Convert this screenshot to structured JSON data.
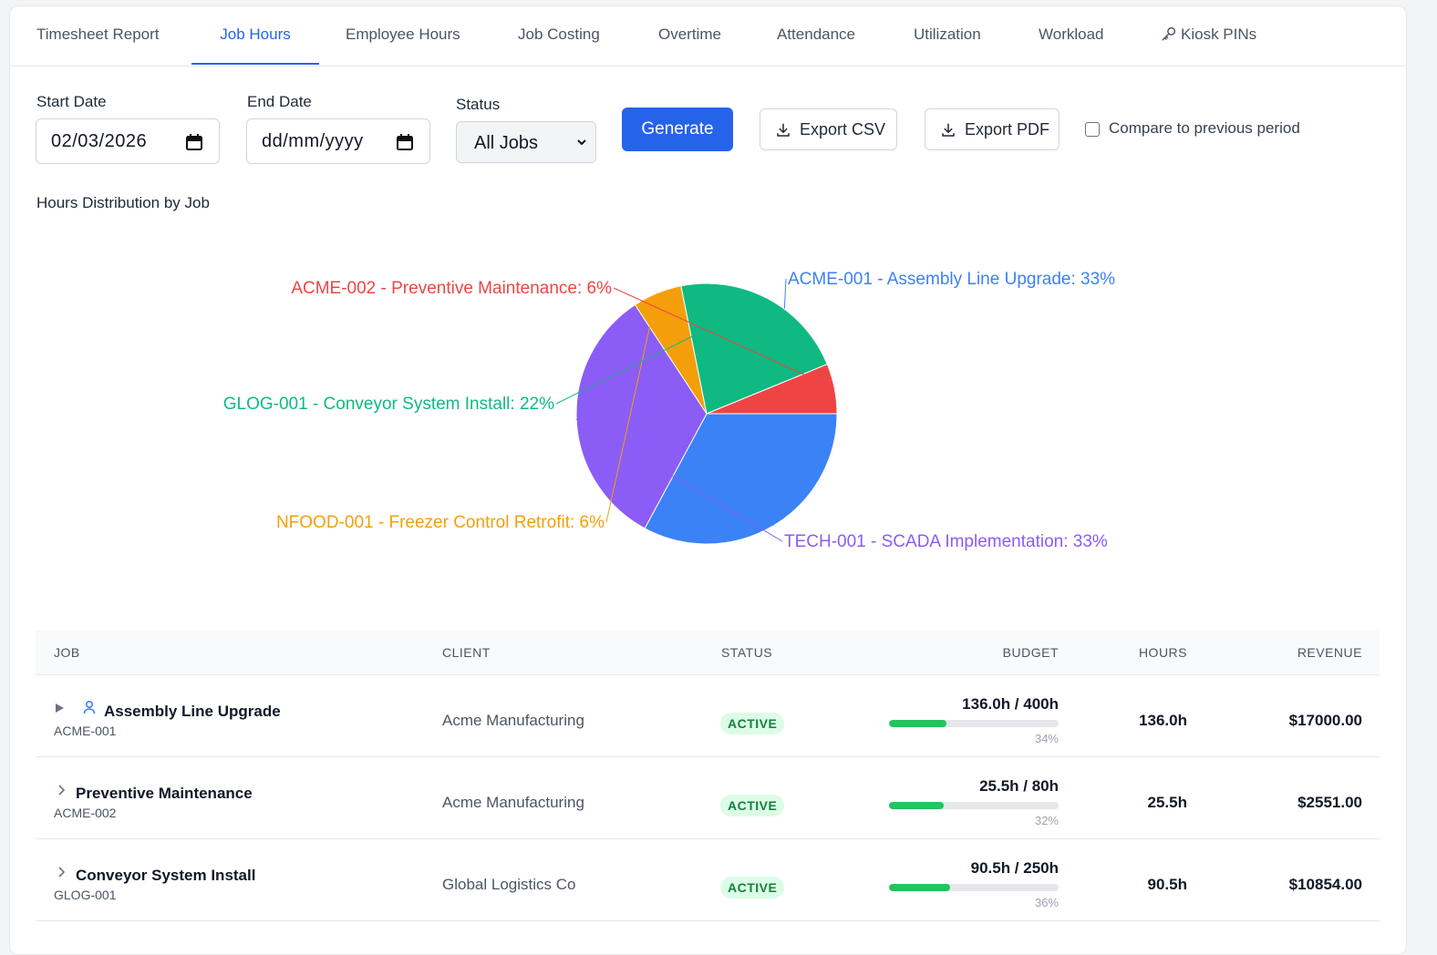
{
  "tabs": [
    {
      "label": "Timesheet Report"
    },
    {
      "label": "Job Hours"
    },
    {
      "label": "Employee Hours"
    },
    {
      "label": "Job Costing"
    },
    {
      "label": "Overtime"
    },
    {
      "label": "Attendance"
    },
    {
      "label": "Utilization"
    },
    {
      "label": "Workload"
    },
    {
      "label": "Kiosk PINs"
    }
  ],
  "active_tab": "Job Hours",
  "filters": {
    "start_label": "Start Date",
    "start_value": "02/03/2026",
    "end_label": "End Date",
    "end_value": "dd/mm/yyyy",
    "status_label": "Status",
    "status_value": "All Jobs",
    "generate": "Generate",
    "export_csv": "Export CSV",
    "export_pdf": "Export PDF",
    "compare": "Compare to previous period",
    "compare_checked": false
  },
  "chart_heading": "Hours Distribution by Job",
  "chart_data": {
    "type": "pie",
    "slices": [
      {
        "label": "ACME-001 - Assembly Line Upgrade: 33%",
        "value": 33.4,
        "color": "#3b82f6"
      },
      {
        "label": "TECH-001 - SCADA Implementation: 33%",
        "value": 33.4,
        "color": "#8b5cf6"
      },
      {
        "label": "NFOOD-001 - Freezer Control Retrofit: 6%",
        "value": 6.2,
        "color": "#f59e0b"
      },
      {
        "label": "GLOG-001 - Conveyor System Install: 22%",
        "value": 22.3,
        "color": "#10b981"
      },
      {
        "label": "ACME-002 - Preventive Maintenance: 6%",
        "value": 6.3,
        "color": "#ef4444"
      }
    ]
  },
  "table": {
    "headers": {
      "job": "JOB",
      "client": "CLIENT",
      "status": "STATUS",
      "budget": "BUDGET",
      "hours": "HOURS",
      "revenue": "REVENUE"
    },
    "rows": [
      {
        "name": "Assembly Line Upgrade",
        "code": "ACME-001",
        "client": "Acme Manufacturing",
        "status": "ACTIVE",
        "budget": "136.0h / 400h",
        "pct": "34%",
        "fill": 0.34,
        "hours": "136.0h",
        "revenue": "$17000.00"
      },
      {
        "name": "Preventive Maintenance",
        "code": "ACME-002",
        "client": "Acme Manufacturing",
        "status": "ACTIVE",
        "budget": "25.5h / 80h",
        "pct": "32%",
        "fill": 0.32,
        "hours": "25.5h",
        "revenue": "$2551.00"
      },
      {
        "name": "Conveyor System Install",
        "code": "GLOG-001",
        "client": "Global Logistics Co",
        "status": "ACTIVE",
        "budget": "90.5h / 250h",
        "pct": "36%",
        "fill": 0.36,
        "hours": "90.5h",
        "revenue": "$10854.00"
      }
    ]
  }
}
